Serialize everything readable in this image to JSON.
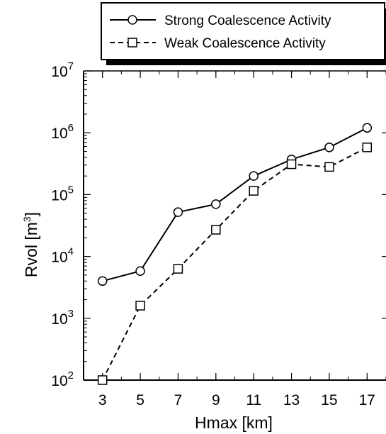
{
  "chart_data": {
    "type": "line",
    "xlabel": "Hmax  [km]",
    "ylabel_main": "Rvol  [m",
    "ylabel_sup": "3",
    "ylabel_close": "]",
    "xlim": [
      2,
      18
    ],
    "ylim": [
      100,
      10000000
    ],
    "y_scale": "log",
    "x": [
      3,
      5,
      7,
      9,
      11,
      13,
      15,
      17
    ],
    "x_tick_labels": [
      "3",
      "5",
      "7",
      "9",
      "11",
      "13",
      "15",
      "17"
    ],
    "y_ticks": [
      {
        "base": "10",
        "exp": "2"
      },
      {
        "base": "10",
        "exp": "3"
      },
      {
        "base": "10",
        "exp": "4"
      },
      {
        "base": "10",
        "exp": "5"
      },
      {
        "base": "10",
        "exp": "6"
      },
      {
        "base": "10",
        "exp": "7"
      }
    ],
    "legend_position": "top-right",
    "grid": false,
    "series": [
      {
        "name": "Strong Coalescence Activity",
        "marker": "circle",
        "line_style": "solid",
        "values": [
          4000,
          5800,
          52000,
          70000,
          200000,
          370000,
          580000,
          1200000
        ]
      },
      {
        "name": "Weak Coalescence Activity",
        "marker": "square",
        "line_style": "dashed",
        "values": [
          100,
          1600,
          6300,
          27000,
          115000,
          310000,
          280000,
          580000
        ]
      }
    ]
  }
}
